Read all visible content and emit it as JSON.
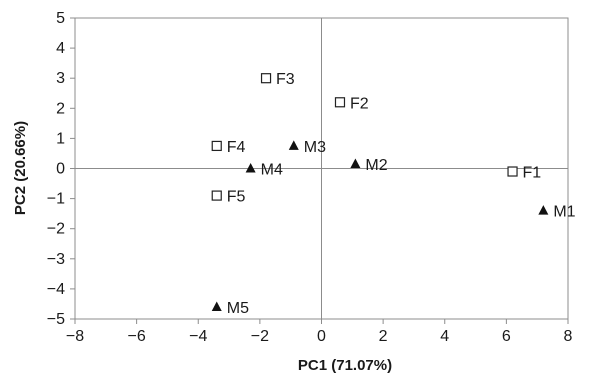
{
  "chart_data": {
    "type": "scatter",
    "title": "",
    "xlabel": "PC1 (71.07%)",
    "ylabel": "PC2 (20.66%)",
    "xlim": [
      -8,
      8
    ],
    "ylim": [
      -5,
      5
    ],
    "x_ticks": [
      -8,
      -6,
      -4,
      -2,
      0,
      2,
      4,
      6,
      8
    ],
    "y_ticks": [
      -5,
      -4,
      -3,
      -2,
      -1,
      0,
      1,
      2,
      3,
      4,
      5
    ],
    "grid": false,
    "legend": "none",
    "series": [
      {
        "marker": "open-square",
        "points": [
          {
            "label": "F1",
            "x": 6.2,
            "y": -0.1
          },
          {
            "label": "F2",
            "x": 0.6,
            "y": 2.2
          },
          {
            "label": "F3",
            "x": -1.8,
            "y": 3.0
          },
          {
            "label": "F4",
            "x": -3.4,
            "y": 0.75
          },
          {
            "label": "F5",
            "x": -3.4,
            "y": -0.9
          }
        ]
      },
      {
        "marker": "filled-triangle",
        "points": [
          {
            "label": "M1",
            "x": 7.2,
            "y": -1.4
          },
          {
            "label": "M2",
            "x": 1.1,
            "y": 0.15
          },
          {
            "label": "M3",
            "x": -0.9,
            "y": 0.75
          },
          {
            "label": "M4",
            "x": -2.3,
            "y": 0.0
          },
          {
            "label": "M5",
            "x": -3.4,
            "y": -4.6
          }
        ]
      }
    ]
  }
}
